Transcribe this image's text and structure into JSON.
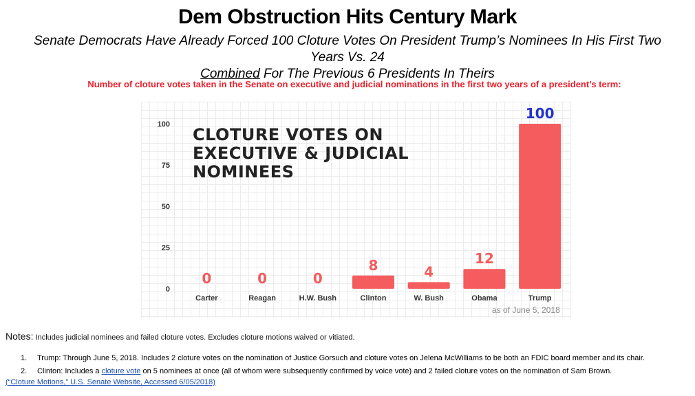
{
  "title": "Dem Obstruction Hits Century Mark",
  "subtitle": {
    "part1": "Senate Democrats Have Already Forced 100 Cloture Votes On President Trump’s Nominees In His First Two Years Vs. 24",
    "underlined": "Combined",
    "part2": "For The Previous 6 Presidents In Theirs"
  },
  "caption": "Number of cloture votes taken in the Senate on executive and judicial nominations in the first two years of a president’s term:",
  "overlay_title": "CLOTURE VOTES ON EXECUTIVE & JUDICIAL NOMINEES",
  "as_of": "as of June 5, 2018",
  "colors": {
    "bar": "#f45c5e",
    "label": "#f45c5e",
    "highlight": "#2233cc",
    "caption": "#e8202a"
  },
  "chart_data": {
    "type": "bar",
    "title": "CLOTURE VOTES ON EXECUTIVE & JUDICIAL NOMINEES",
    "categories": [
      "Carter",
      "Reagan",
      "H.W. Bush",
      "Clinton",
      "W. Bush",
      "Obama",
      "Trump"
    ],
    "values": [
      0,
      0,
      0,
      8,
      4,
      12,
      100
    ],
    "ylim": [
      0,
      100
    ],
    "yticks": [
      0,
      25,
      50,
      75,
      100
    ],
    "xlabel": "",
    "ylabel": "",
    "grid": true,
    "highlight_category": "Trump"
  },
  "notes": {
    "label": "Notes:",
    "text": "Includes judicial nominees and failed cloture votes. Excludes cloture motions waived or vitiated.",
    "items": [
      {
        "num": "1.",
        "text": "Trump: Through June 5, 2018. Includes 2 cloture votes on the nomination of Justice Gorsuch and cloture votes on Jelena McWilliams to be both an FDIC board member and its chair."
      },
      {
        "num": "2.",
        "before": "Clinton: Includes a",
        "link": "cloture vote",
        "after": "on 5 nominees at once (all of whom were subsequently confirmed by voice vote) and 2 failed cloture votes on the nomination of Sam Brown."
      }
    ]
  },
  "source": "(“Cloture Motions,” U.S. Senate Website, Accessed 6/05/2018)"
}
